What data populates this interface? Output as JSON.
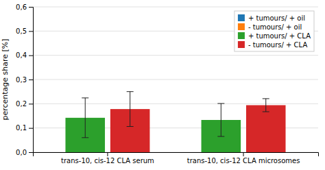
{
  "chart_data": {
    "type": "bar",
    "categories": [
      "trans-10, cis-12 CLA serum",
      "trans-10, cis-12 CLA microsomes"
    ],
    "series": [
      {
        "name": "+ tumours/ + oil",
        "values": [
          null,
          null
        ],
        "errors": [
          null,
          null
        ]
      },
      {
        "name": "- tumours/ + oil",
        "values": [
          null,
          null
        ],
        "errors": [
          null,
          null
        ]
      },
      {
        "name": "+ tumours/ + CLA",
        "values": [
          0.142,
          0.133
        ],
        "errors": [
          0.082,
          0.068
        ]
      },
      {
        "name": "- tumours/ + CLA",
        "values": [
          0.178,
          0.194
        ],
        "errors": [
          0.072,
          0.027
        ]
      }
    ],
    "ylabel": "percentage share [%]",
    "ylim": [
      0.0,
      0.6
    ],
    "yticks": [
      {
        "value": 0.0,
        "label": "0,0"
      },
      {
        "value": 0.1,
        "label": "0,1"
      },
      {
        "value": 0.2,
        "label": "0,2"
      },
      {
        "value": 0.3,
        "label": "0,3"
      },
      {
        "value": 0.4,
        "label": "0,4"
      },
      {
        "value": 0.5,
        "label": "0,5"
      },
      {
        "value": 0.6,
        "label": "0,6"
      }
    ],
    "grid": true,
    "legend": "upper right"
  }
}
